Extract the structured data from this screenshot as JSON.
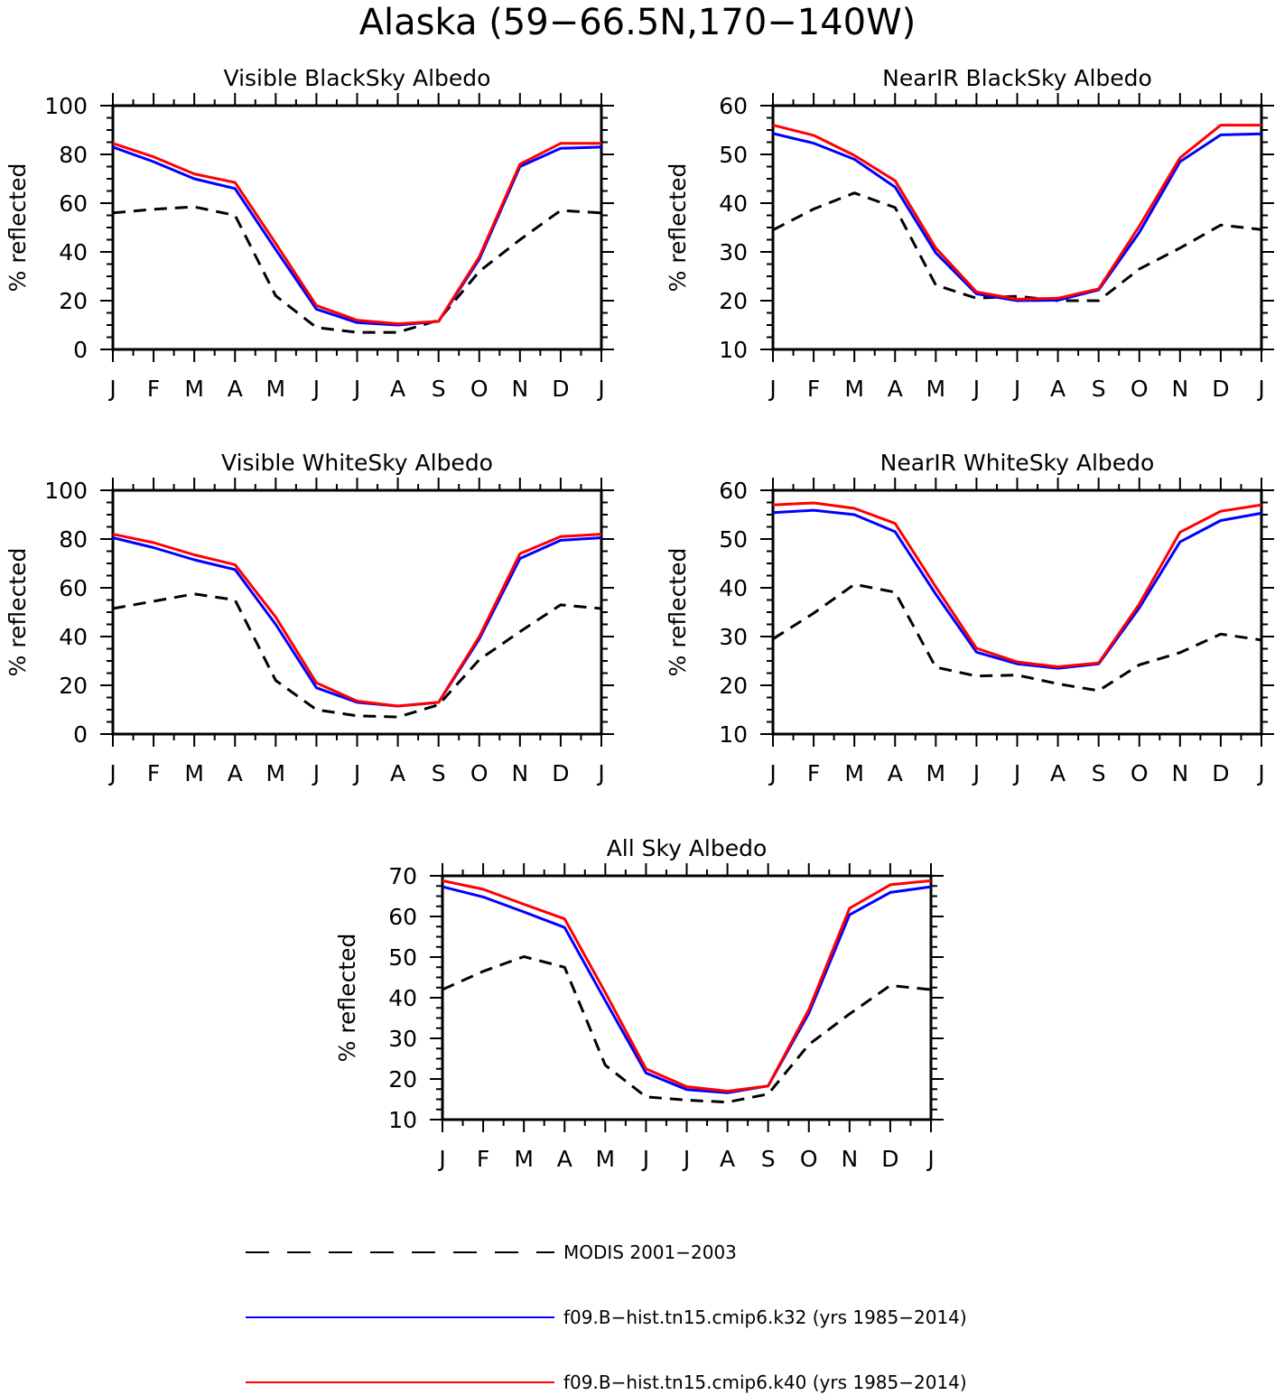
{
  "figure": {
    "title": "Alaska (59−66.5N,170−140W)"
  },
  "legend": {
    "items": [
      {
        "label": "MODIS 2001−2003",
        "color": "#000000",
        "dashed": true
      },
      {
        "label": "f09.B−hist.tn15.cmip6.k32 (yrs 1985−2014)",
        "color": "#0000ff",
        "dashed": false
      },
      {
        "label": "f09.B−hist.tn15.cmip6.k40 (yrs 1985−2014)",
        "color": "#ff0000",
        "dashed": false
      }
    ]
  },
  "chart_data": [
    {
      "type": "line",
      "title": "Visible BlackSky Albedo",
      "ylabel": "% reflected",
      "xlabel": "",
      "categories": [
        "J",
        "F",
        "M",
        "A",
        "M",
        "J",
        "J",
        "A",
        "S",
        "O",
        "N",
        "D",
        "J"
      ],
      "ylim": [
        0,
        100
      ],
      "yticks": [
        0,
        20,
        40,
        60,
        80,
        100
      ],
      "grid": false,
      "series": [
        {
          "name": "MODIS 2001−2003",
          "color": "#000000",
          "dashed": true,
          "values": [
            56,
            57.5,
            58.5,
            55,
            22,
            9,
            7,
            7,
            12,
            32,
            45,
            57,
            56
          ]
        },
        {
          "name": "f09.B−hist.tn15.cmip6.k32 (yrs 1985−2014)",
          "color": "#0000ff",
          "dashed": false,
          "values": [
            83,
            77,
            70,
            66,
            41,
            16.5,
            11,
            10,
            11.5,
            37,
            75,
            82.5,
            83
          ]
        },
        {
          "name": "f09.B−hist.tn15.cmip6.k40 (yrs 1985−2014)",
          "color": "#ff0000",
          "dashed": false,
          "values": [
            84.5,
            79,
            72,
            68.5,
            43.5,
            18,
            12,
            10.5,
            11.5,
            38,
            76,
            84.5,
            84.5
          ]
        }
      ]
    },
    {
      "type": "line",
      "title": "NearIR BlackSky Albedo",
      "ylabel": "% reflected",
      "xlabel": "",
      "categories": [
        "J",
        "F",
        "M",
        "A",
        "M",
        "J",
        "J",
        "A",
        "S",
        "O",
        "N",
        "D",
        "J"
      ],
      "ylim": [
        10,
        60
      ],
      "yticks": [
        10,
        20,
        30,
        40,
        50,
        60
      ],
      "grid": false,
      "series": [
        {
          "name": "MODIS 2001−2003",
          "color": "#000000",
          "dashed": true,
          "values": [
            34.5,
            38.8,
            42.1,
            39.1,
            23.2,
            20.5,
            20.9,
            20,
            20,
            26.5,
            30.8,
            35.5,
            34.6
          ]
        },
        {
          "name": "f09.B−hist.tn15.cmip6.k32 (yrs 1985−2014)",
          "color": "#0000ff",
          "dashed": false,
          "values": [
            54.3,
            52.3,
            49,
            43.3,
            29.8,
            21.4,
            20,
            20.1,
            22.2,
            34,
            48.5,
            54,
            54.2
          ]
        },
        {
          "name": "f09.B−hist.tn15.cmip6.k40 (yrs 1985−2014)",
          "color": "#ff0000",
          "dashed": false,
          "values": [
            56,
            53.9,
            49.8,
            44.6,
            30.8,
            21.8,
            20.3,
            20.5,
            22.4,
            35.3,
            49.3,
            56,
            56
          ]
        }
      ]
    },
    {
      "type": "line",
      "title": "Visible WhiteSky Albedo",
      "ylabel": "% reflected",
      "xlabel": "",
      "categories": [
        "J",
        "F",
        "M",
        "A",
        "M",
        "J",
        "J",
        "A",
        "S",
        "O",
        "N",
        "D",
        "J"
      ],
      "ylim": [
        0,
        100
      ],
      "yticks": [
        0,
        20,
        40,
        60,
        80,
        100
      ],
      "grid": false,
      "series": [
        {
          "name": "MODIS 2001−2003",
          "color": "#000000",
          "dashed": true,
          "values": [
            51.5,
            54.5,
            57.5,
            55,
            22,
            10,
            7.5,
            7,
            12,
            30.5,
            42,
            53,
            51.5
          ]
        },
        {
          "name": "f09.B−hist.tn15.cmip6.k32 (yrs 1985−2014)",
          "color": "#0000ff",
          "dashed": false,
          "values": [
            80.5,
            76.5,
            71.5,
            67.5,
            45,
            19,
            13,
            11.5,
            13,
            39,
            72,
            79.5,
            80.5
          ]
        },
        {
          "name": "f09.B−hist.tn15.cmip6.k40 (yrs 1985−2014)",
          "color": "#ff0000",
          "dashed": false,
          "values": [
            82,
            78.5,
            73.5,
            69.5,
            48,
            21,
            13.5,
            11.5,
            13,
            40,
            74,
            81,
            82
          ]
        }
      ]
    },
    {
      "type": "line",
      "title": "NearIR WhiteSky Albedo",
      "ylabel": "% reflected",
      "xlabel": "",
      "categories": [
        "J",
        "F",
        "M",
        "A",
        "M",
        "J",
        "J",
        "A",
        "S",
        "O",
        "N",
        "D",
        "J"
      ],
      "ylim": [
        10,
        60
      ],
      "yticks": [
        10,
        20,
        30,
        40,
        50,
        60
      ],
      "grid": false,
      "series": [
        {
          "name": "MODIS 2001−2003",
          "color": "#000000",
          "dashed": true,
          "values": [
            29.5,
            34.8,
            40.7,
            39.1,
            23.7,
            21.9,
            22.1,
            20.3,
            18.9,
            24.2,
            26.7,
            30.5,
            29.3
          ]
        },
        {
          "name": "f09.B−hist.tn15.cmip6.k32 (yrs 1985−2014)",
          "color": "#0000ff",
          "dashed": false,
          "values": [
            55.4,
            55.9,
            55,
            51.5,
            38.7,
            26.8,
            24.4,
            23.5,
            24.4,
            35.9,
            49.4,
            53.8,
            55.3
          ]
        },
        {
          "name": "f09.B−hist.tn15.cmip6.k40 (yrs 1985−2014)",
          "color": "#ff0000",
          "dashed": false,
          "values": [
            57,
            57.4,
            56.3,
            53.2,
            40.2,
            27.6,
            24.8,
            23.8,
            24.6,
            36.7,
            51.4,
            55.7,
            57
          ]
        }
      ]
    },
    {
      "type": "line",
      "title": "All Sky Albedo",
      "ylabel": "% reflected",
      "xlabel": "",
      "categories": [
        "J",
        "F",
        "M",
        "A",
        "M",
        "J",
        "J",
        "A",
        "S",
        "O",
        "N",
        "D",
        "J"
      ],
      "ylim": [
        10,
        70
      ],
      "yticks": [
        10,
        20,
        30,
        40,
        50,
        60,
        70
      ],
      "grid": false,
      "series": [
        {
          "name": "MODIS 2001−2003",
          "color": "#000000",
          "dashed": true,
          "values": [
            42,
            46.5,
            50.1,
            47.5,
            23.4,
            15.6,
            14.8,
            14.3,
            16.3,
            28.5,
            36,
            43,
            42
          ]
        },
        {
          "name": "f09.B−hist.tn15.cmip6.k32 (yrs 1985−2014)",
          "color": "#0000ff",
          "dashed": false,
          "values": [
            67.3,
            64.8,
            61.1,
            57.3,
            39.3,
            21.5,
            17.4,
            16.6,
            18.3,
            36.2,
            60.4,
            65.9,
            67.3
          ]
        },
        {
          "name": "f09.B−hist.tn15.cmip6.k40 (yrs 1985−2014)",
          "color": "#ff0000",
          "dashed": false,
          "values": [
            68.8,
            66.7,
            63,
            59.4,
            41.3,
            22.5,
            18.1,
            17,
            18.3,
            37.1,
            62,
            67.8,
            68.8
          ]
        }
      ]
    }
  ]
}
